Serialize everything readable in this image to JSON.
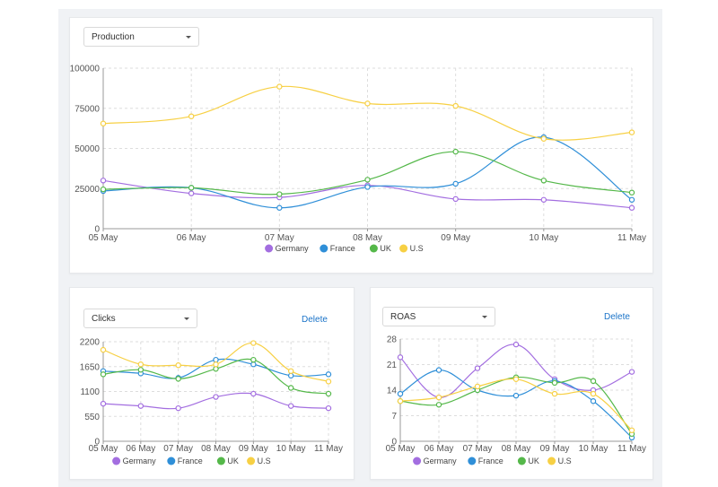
{
  "panels": {
    "top": {
      "dropdown_label": "Production"
    },
    "left": {
      "dropdown_label": "Clicks",
      "delete_label": "Delete"
    },
    "right": {
      "dropdown_label": "ROAS",
      "delete_label": "Delete"
    }
  },
  "colors": {
    "Germany": "#a36ee0",
    "France": "#2f8fd8",
    "UK": "#55b84a",
    "U.S": "#f7d044"
  },
  "chart_data": [
    {
      "id": "production",
      "type": "line",
      "categories": [
        "05 May",
        "06 May",
        "07 May",
        "08 May",
        "09 May",
        "10 May",
        "11 May"
      ],
      "ylim": [
        0,
        100000
      ],
      "yticks": [
        0,
        25000,
        50000,
        75000,
        100000
      ],
      "grid": true,
      "legend": "bottom",
      "series": [
        {
          "name": "Germany",
          "values": [
            30000,
            22000,
            19500,
            27000,
            18500,
            18000,
            13000
          ]
        },
        {
          "name": "France",
          "values": [
            23500,
            25500,
            13000,
            26000,
            28000,
            57000,
            18000
          ]
        },
        {
          "name": "UK",
          "values": [
            24500,
            25500,
            21500,
            30500,
            48000,
            30000,
            22500
          ]
        },
        {
          "name": "U.S",
          "values": [
            65500,
            70000,
            88500,
            78000,
            76500,
            56000,
            60000
          ]
        }
      ]
    },
    {
      "id": "clicks",
      "type": "line",
      "categories": [
        "05 May",
        "06 May",
        "07 May",
        "08 May",
        "09 May",
        "10 May",
        "11 May"
      ],
      "ylim": [
        0,
        2200
      ],
      "yticks": [
        0,
        550,
        1100,
        1650,
        2200
      ],
      "grid": true,
      "legend": "bottom",
      "series": [
        {
          "name": "Germany",
          "values": [
            830,
            780,
            730,
            980,
            1050,
            780,
            730
          ]
        },
        {
          "name": "France",
          "values": [
            1550,
            1500,
            1400,
            1800,
            1700,
            1450,
            1480
          ]
        },
        {
          "name": "UK",
          "values": [
            1480,
            1580,
            1380,
            1600,
            1800,
            1180,
            1050
          ]
        },
        {
          "name": "U.S",
          "values": [
            2020,
            1700,
            1680,
            1700,
            2170,
            1550,
            1320
          ]
        }
      ]
    },
    {
      "id": "roas",
      "type": "line",
      "categories": [
        "05 May",
        "06 May",
        "07 May",
        "08 May",
        "09 May",
        "10 May",
        "11 May"
      ],
      "ylim": [
        0,
        28
      ],
      "yticks": [
        0,
        7,
        14,
        21,
        28
      ],
      "grid": true,
      "legend": "bottom",
      "series": [
        {
          "name": "Germany",
          "values": [
            23,
            12,
            20,
            26.5,
            17,
            14,
            19
          ]
        },
        {
          "name": "France",
          "values": [
            13,
            19.5,
            14,
            12.5,
            16.5,
            11,
            1
          ]
        },
        {
          "name": "UK",
          "values": [
            11,
            10,
            14,
            17.5,
            16,
            16.5,
            2
          ]
        },
        {
          "name": "U.S",
          "values": [
            11,
            12,
            15,
            17,
            13,
            13,
            3
          ]
        }
      ]
    }
  ]
}
